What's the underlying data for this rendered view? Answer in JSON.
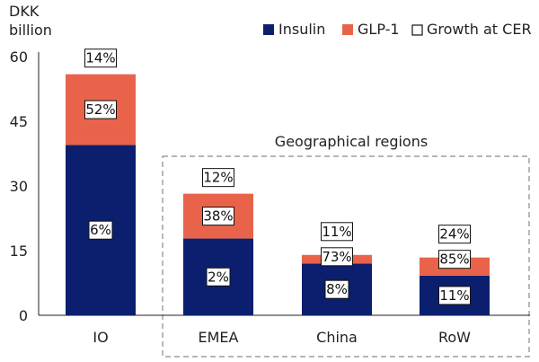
{
  "chart_data": {
    "type": "bar",
    "stacked": true,
    "ylabel_line1": "DKK",
    "ylabel_line2": "billion",
    "ylim": [
      0,
      60
    ],
    "yticks": [
      "0",
      "15",
      "30",
      "45",
      "60"
    ],
    "categories": [
      "IO",
      "EMEA",
      "China",
      "RoW"
    ],
    "series": [
      {
        "name": "Insulin",
        "color": "#0b1f6e",
        "values": [
          39.5,
          17.8,
          12.0,
          9.2
        ],
        "growth_labels": [
          "6%",
          "2%",
          "8%",
          "11%"
        ]
      },
      {
        "name": "GLP-1",
        "color": "#e8634a",
        "values": [
          16.4,
          10.4,
          2.0,
          4.2
        ],
        "growth_labels": [
          "52%",
          "38%",
          "73%",
          "85%"
        ]
      }
    ],
    "total_growth_labels": [
      "14%",
      "12%",
      "11%",
      "24%"
    ],
    "legend": {
      "placement": "top-right",
      "items": [
        {
          "label": "Insulin",
          "swatch": "#0b1f6e"
        },
        {
          "label": "GLP-1",
          "swatch": "#e8634a"
        },
        {
          "label": "Growth at CER",
          "swatch": "outline"
        }
      ]
    },
    "group_annotation": "Geographical regions",
    "grid": false
  }
}
